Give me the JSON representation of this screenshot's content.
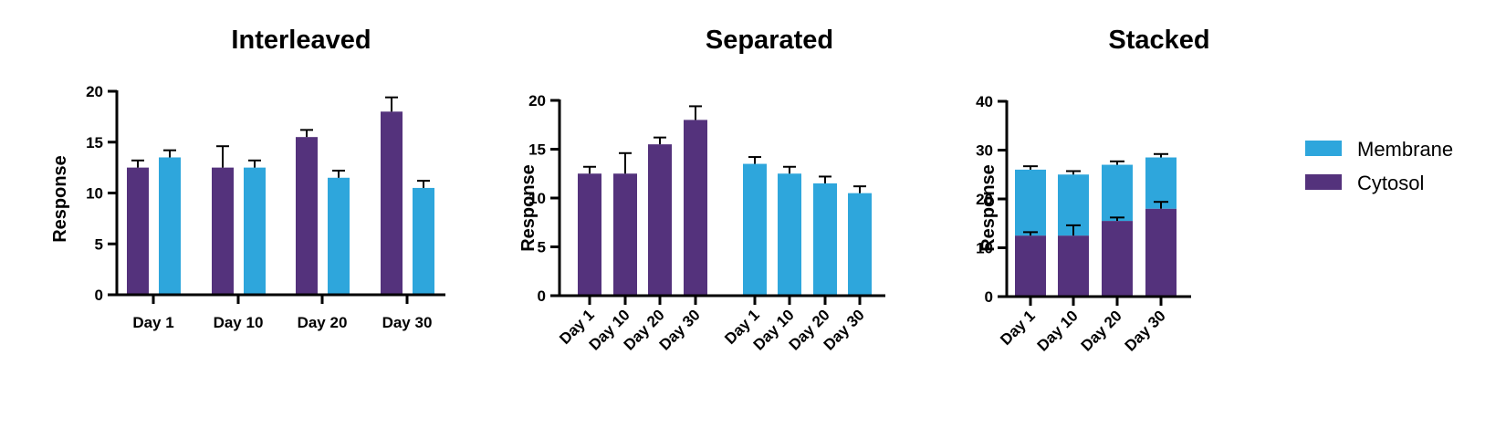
{
  "colors": {
    "Cytosol": "#54327c",
    "Membrane": "#2ea6dc",
    "axis": "#000000"
  },
  "legend": {
    "placement": "right",
    "items": [
      "Membrane",
      "Cytosol"
    ]
  },
  "chart_data": [
    {
      "type": "bar",
      "variant": "interleaved",
      "title": "Interleaved",
      "ylabel": "Response",
      "xlabel": "",
      "ylim": [
        0,
        20
      ],
      "yticks": [
        0,
        5,
        10,
        15,
        20
      ],
      "categories": [
        "Day 1",
        "Day 10",
        "Day 20",
        "Day 30"
      ],
      "series": [
        {
          "name": "Cytosol",
          "values": [
            12.5,
            12.5,
            15.5,
            18.0
          ],
          "errors": [
            0.7,
            2.1,
            0.7,
            1.4
          ]
        },
        {
          "name": "Membrane",
          "values": [
            13.5,
            12.5,
            11.5,
            10.5
          ],
          "errors": [
            0.7,
            0.7,
            0.7,
            0.7
          ]
        }
      ]
    },
    {
      "type": "bar",
      "variant": "separated",
      "title": "Separated",
      "ylabel": "Response",
      "xlabel": "",
      "ylim": [
        0,
        20
      ],
      "yticks": [
        0,
        5,
        10,
        15,
        20
      ],
      "categories": [
        "Day 1",
        "Day 10",
        "Day 20",
        "Day 30"
      ],
      "series": [
        {
          "name": "Cytosol",
          "values": [
            12.5,
            12.5,
            15.5,
            18.0
          ],
          "errors": [
            0.7,
            2.1,
            0.7,
            1.4
          ]
        },
        {
          "name": "Membrane",
          "values": [
            13.5,
            12.5,
            11.5,
            10.5
          ],
          "errors": [
            0.7,
            0.7,
            0.7,
            0.7
          ]
        }
      ]
    },
    {
      "type": "bar",
      "variant": "stacked",
      "title": "Stacked",
      "ylabel": "Response",
      "xlabel": "",
      "ylim": [
        0,
        40
      ],
      "yticks": [
        0,
        10,
        20,
        30,
        40
      ],
      "categories": [
        "Day 1",
        "Day 10",
        "Day 20",
        "Day 30"
      ],
      "series": [
        {
          "name": "Cytosol",
          "values": [
            12.5,
            12.5,
            15.5,
            18.0
          ],
          "errors": [
            0.7,
            2.1,
            0.7,
            1.4
          ]
        },
        {
          "name": "Membrane",
          "values": [
            13.5,
            12.5,
            11.5,
            10.5
          ],
          "errors": [
            0.7,
            0.7,
            0.7,
            0.7
          ]
        }
      ]
    }
  ]
}
